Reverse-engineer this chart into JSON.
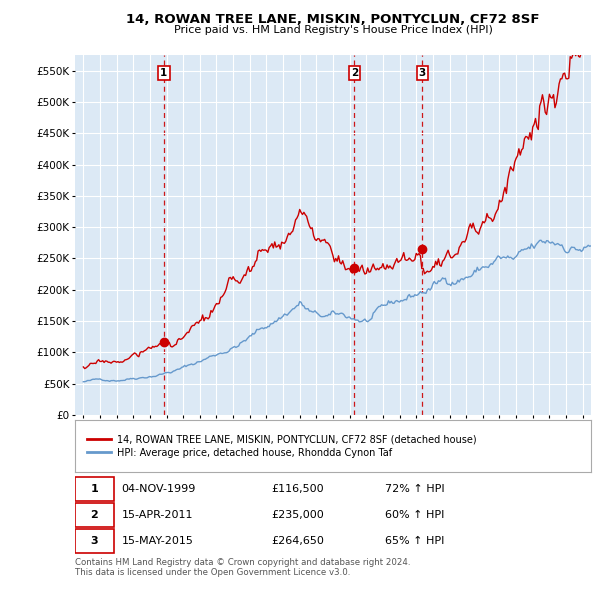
{
  "title": "14, ROWAN TREE LANE, MISKIN, PONTYCLUN, CF72 8SF",
  "subtitle": "Price paid vs. HM Land Registry's House Price Index (HPI)",
  "red_label": "14, ROWAN TREE LANE, MISKIN, PONTYCLUN, CF72 8SF (detached house)",
  "blue_label": "HPI: Average price, detached house, Rhondda Cynon Taf",
  "sale_points": [
    {
      "label": "1",
      "date_x": 1999.84,
      "price": 116500,
      "date_str": "04-NOV-1999",
      "price_str": "£116,500",
      "pct": "72% ↑ HPI"
    },
    {
      "label": "2",
      "date_x": 2011.29,
      "price": 235000,
      "date_str": "15-APR-2011",
      "price_str": "£235,000",
      "pct": "60% ↑ HPI"
    },
    {
      "label": "3",
      "date_x": 2015.37,
      "price": 264650,
      "date_str": "15-MAY-2015",
      "price_str": "£264,650",
      "pct": "65% ↑ HPI"
    }
  ],
  "red_color": "#cc0000",
  "blue_color": "#6699cc",
  "sale_vline_color": "#cc0000",
  "chart_bg_color": "#dce9f5",
  "background_color": "#ffffff",
  "grid_color": "#ffffff",
  "ylim": [
    0,
    575000
  ],
  "xlim_start": 1994.5,
  "xlim_end": 2025.5,
  "yticks": [
    0,
    50000,
    100000,
    150000,
    200000,
    250000,
    300000,
    350000,
    400000,
    450000,
    500000,
    550000
  ],
  "ytick_labels": [
    "£0",
    "£50K",
    "£100K",
    "£150K",
    "£200K",
    "£250K",
    "£300K",
    "£350K",
    "£400K",
    "£450K",
    "£500K",
    "£550K"
  ],
  "xticks": [
    1995,
    1996,
    1997,
    1998,
    1999,
    2000,
    2001,
    2002,
    2003,
    2004,
    2005,
    2006,
    2007,
    2008,
    2009,
    2010,
    2011,
    2012,
    2013,
    2014,
    2015,
    2016,
    2017,
    2018,
    2019,
    2020,
    2021,
    2022,
    2023,
    2024,
    2025
  ],
  "footer": "Contains HM Land Registry data © Crown copyright and database right 2024.\nThis data is licensed under the Open Government Licence v3.0."
}
